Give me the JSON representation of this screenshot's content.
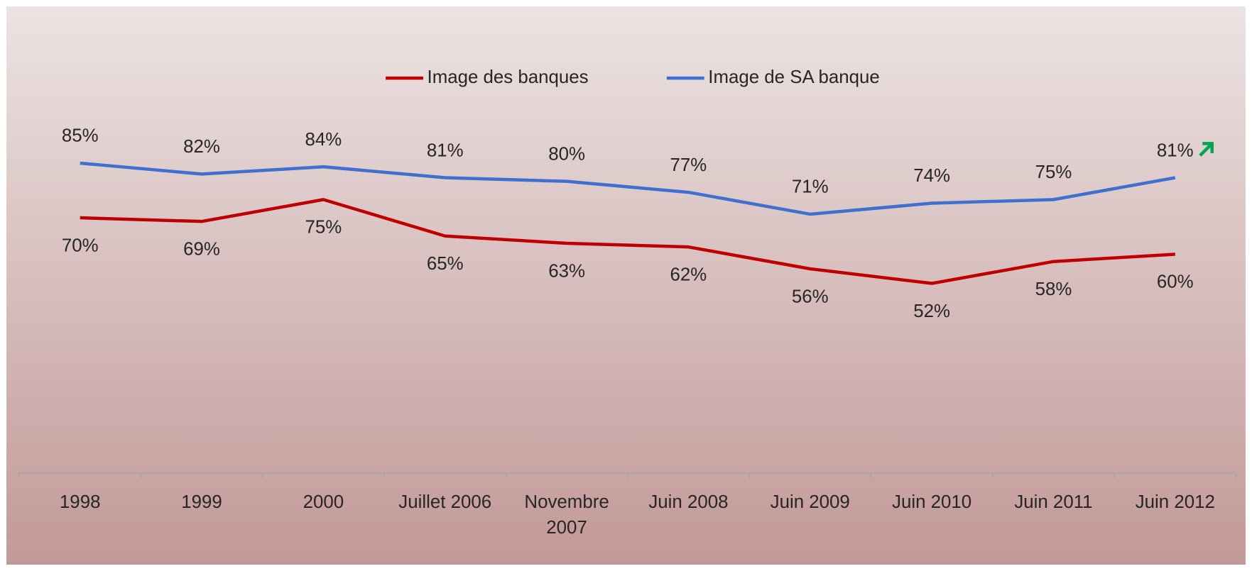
{
  "chart_data": {
    "type": "line",
    "categories": [
      "1998",
      "1999",
      "2000",
      "Juillet 2006",
      "Novembre 2007",
      "Juin 2008",
      "Juin 2009",
      "Juin 2010",
      "Juin 2011",
      "Juin 2012"
    ],
    "series": [
      {
        "name": "Image des banques",
        "color": "#c00000",
        "values": [
          70,
          69,
          75,
          65,
          63,
          62,
          56,
          52,
          58,
          60
        ],
        "value_labels": [
          "70%",
          "69%",
          "75%",
          "65%",
          "63%",
          "62%",
          "56%",
          "52%",
          "58%",
          "60%"
        ]
      },
      {
        "name": "Image de SA banque",
        "color": "#3f6fcf",
        "values": [
          85,
          82,
          84,
          81,
          80,
          77,
          71,
          74,
          75,
          81
        ],
        "value_labels": [
          "85%",
          "82%",
          "84%",
          "81%",
          "80%",
          "77%",
          "71%",
          "74%",
          "75%",
          "81%"
        ]
      }
    ],
    "ylim": [
      0,
      100
    ],
    "legend": "top"
  }
}
